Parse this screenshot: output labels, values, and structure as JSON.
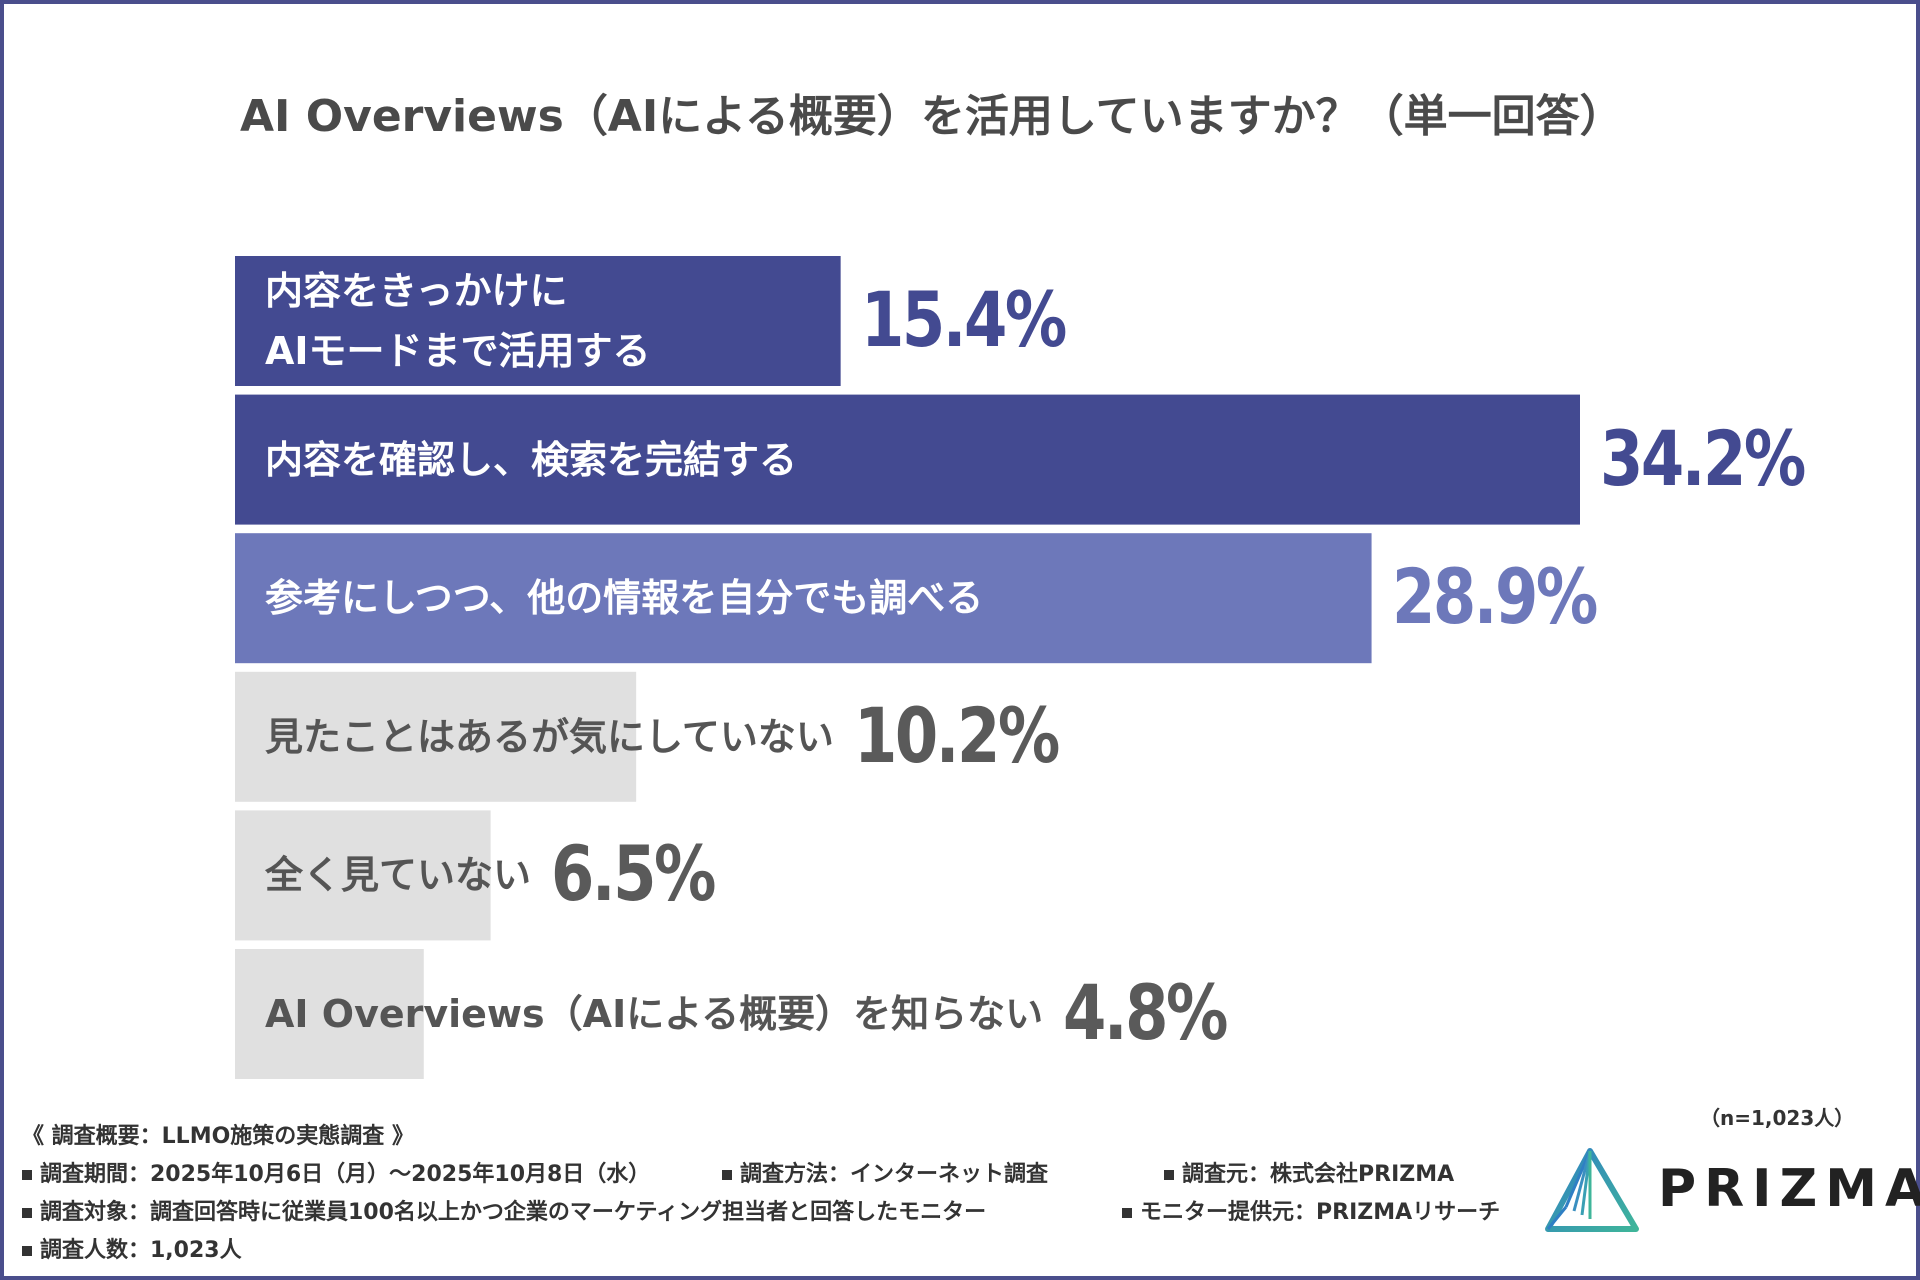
{
  "title": "AI Overviews（AIによる概要）を活用していますか？（単一回答）",
  "chart_data": {
    "type": "bar",
    "orientation": "horizontal",
    "title": "AI Overviews（AIによる概要）を活用していますか？（単一回答）",
    "categories": [
      "内容をきっかけに\nAIモードまで活用する",
      "内容を確認し、検索を完結する",
      "参考にしつつ、他の情報を自分でも調べる",
      "見たことはあるが気にしていない",
      "全く見ていない",
      "AI Overviews（AIによる概要）を知らない"
    ],
    "values": [
      15.4,
      34.2,
      28.9,
      10.2,
      6.5,
      4.8
    ],
    "value_labels": [
      "15.4%",
      "34.2%",
      "28.9%",
      "10.2%",
      "6.5%",
      "4.8%"
    ],
    "bar_colors": [
      "#434a91",
      "#434a91",
      "#6d78ba",
      "#e0e0e0",
      "#e0e0e0",
      "#e0e0e0"
    ],
    "label_colors": [
      "#ffffff",
      "#ffffff",
      "#ffffff",
      "#555555",
      "#555555",
      "#555555"
    ],
    "value_colors": [
      "#434a91",
      "#434a91",
      "#6d78ba",
      "#5a5a5a",
      "#5a5a5a",
      "#5a5a5a"
    ],
    "unit": "%",
    "legend": "none",
    "grid": false
  },
  "sample_size": "（n=1,023人）",
  "footer": {
    "heading": "《 調査概要：LLMO施策の実態調査 》",
    "period": "調査期間：2025年10月6日（月）～2025年10月8日（水）",
    "method": "調査方法：インターネット調査",
    "source": "調査元：株式会社PRIZMA",
    "target": "調査対象：調査回答時に従業員100名以上かつ企業のマーケティング担当者と回答したモニター",
    "provider": "モニター提供元：PRIZMAリサーチ",
    "count": "調査人数：1,023人"
  },
  "logo": {
    "text": "PRIZMA",
    "icon": "prism-triangle-icon"
  }
}
